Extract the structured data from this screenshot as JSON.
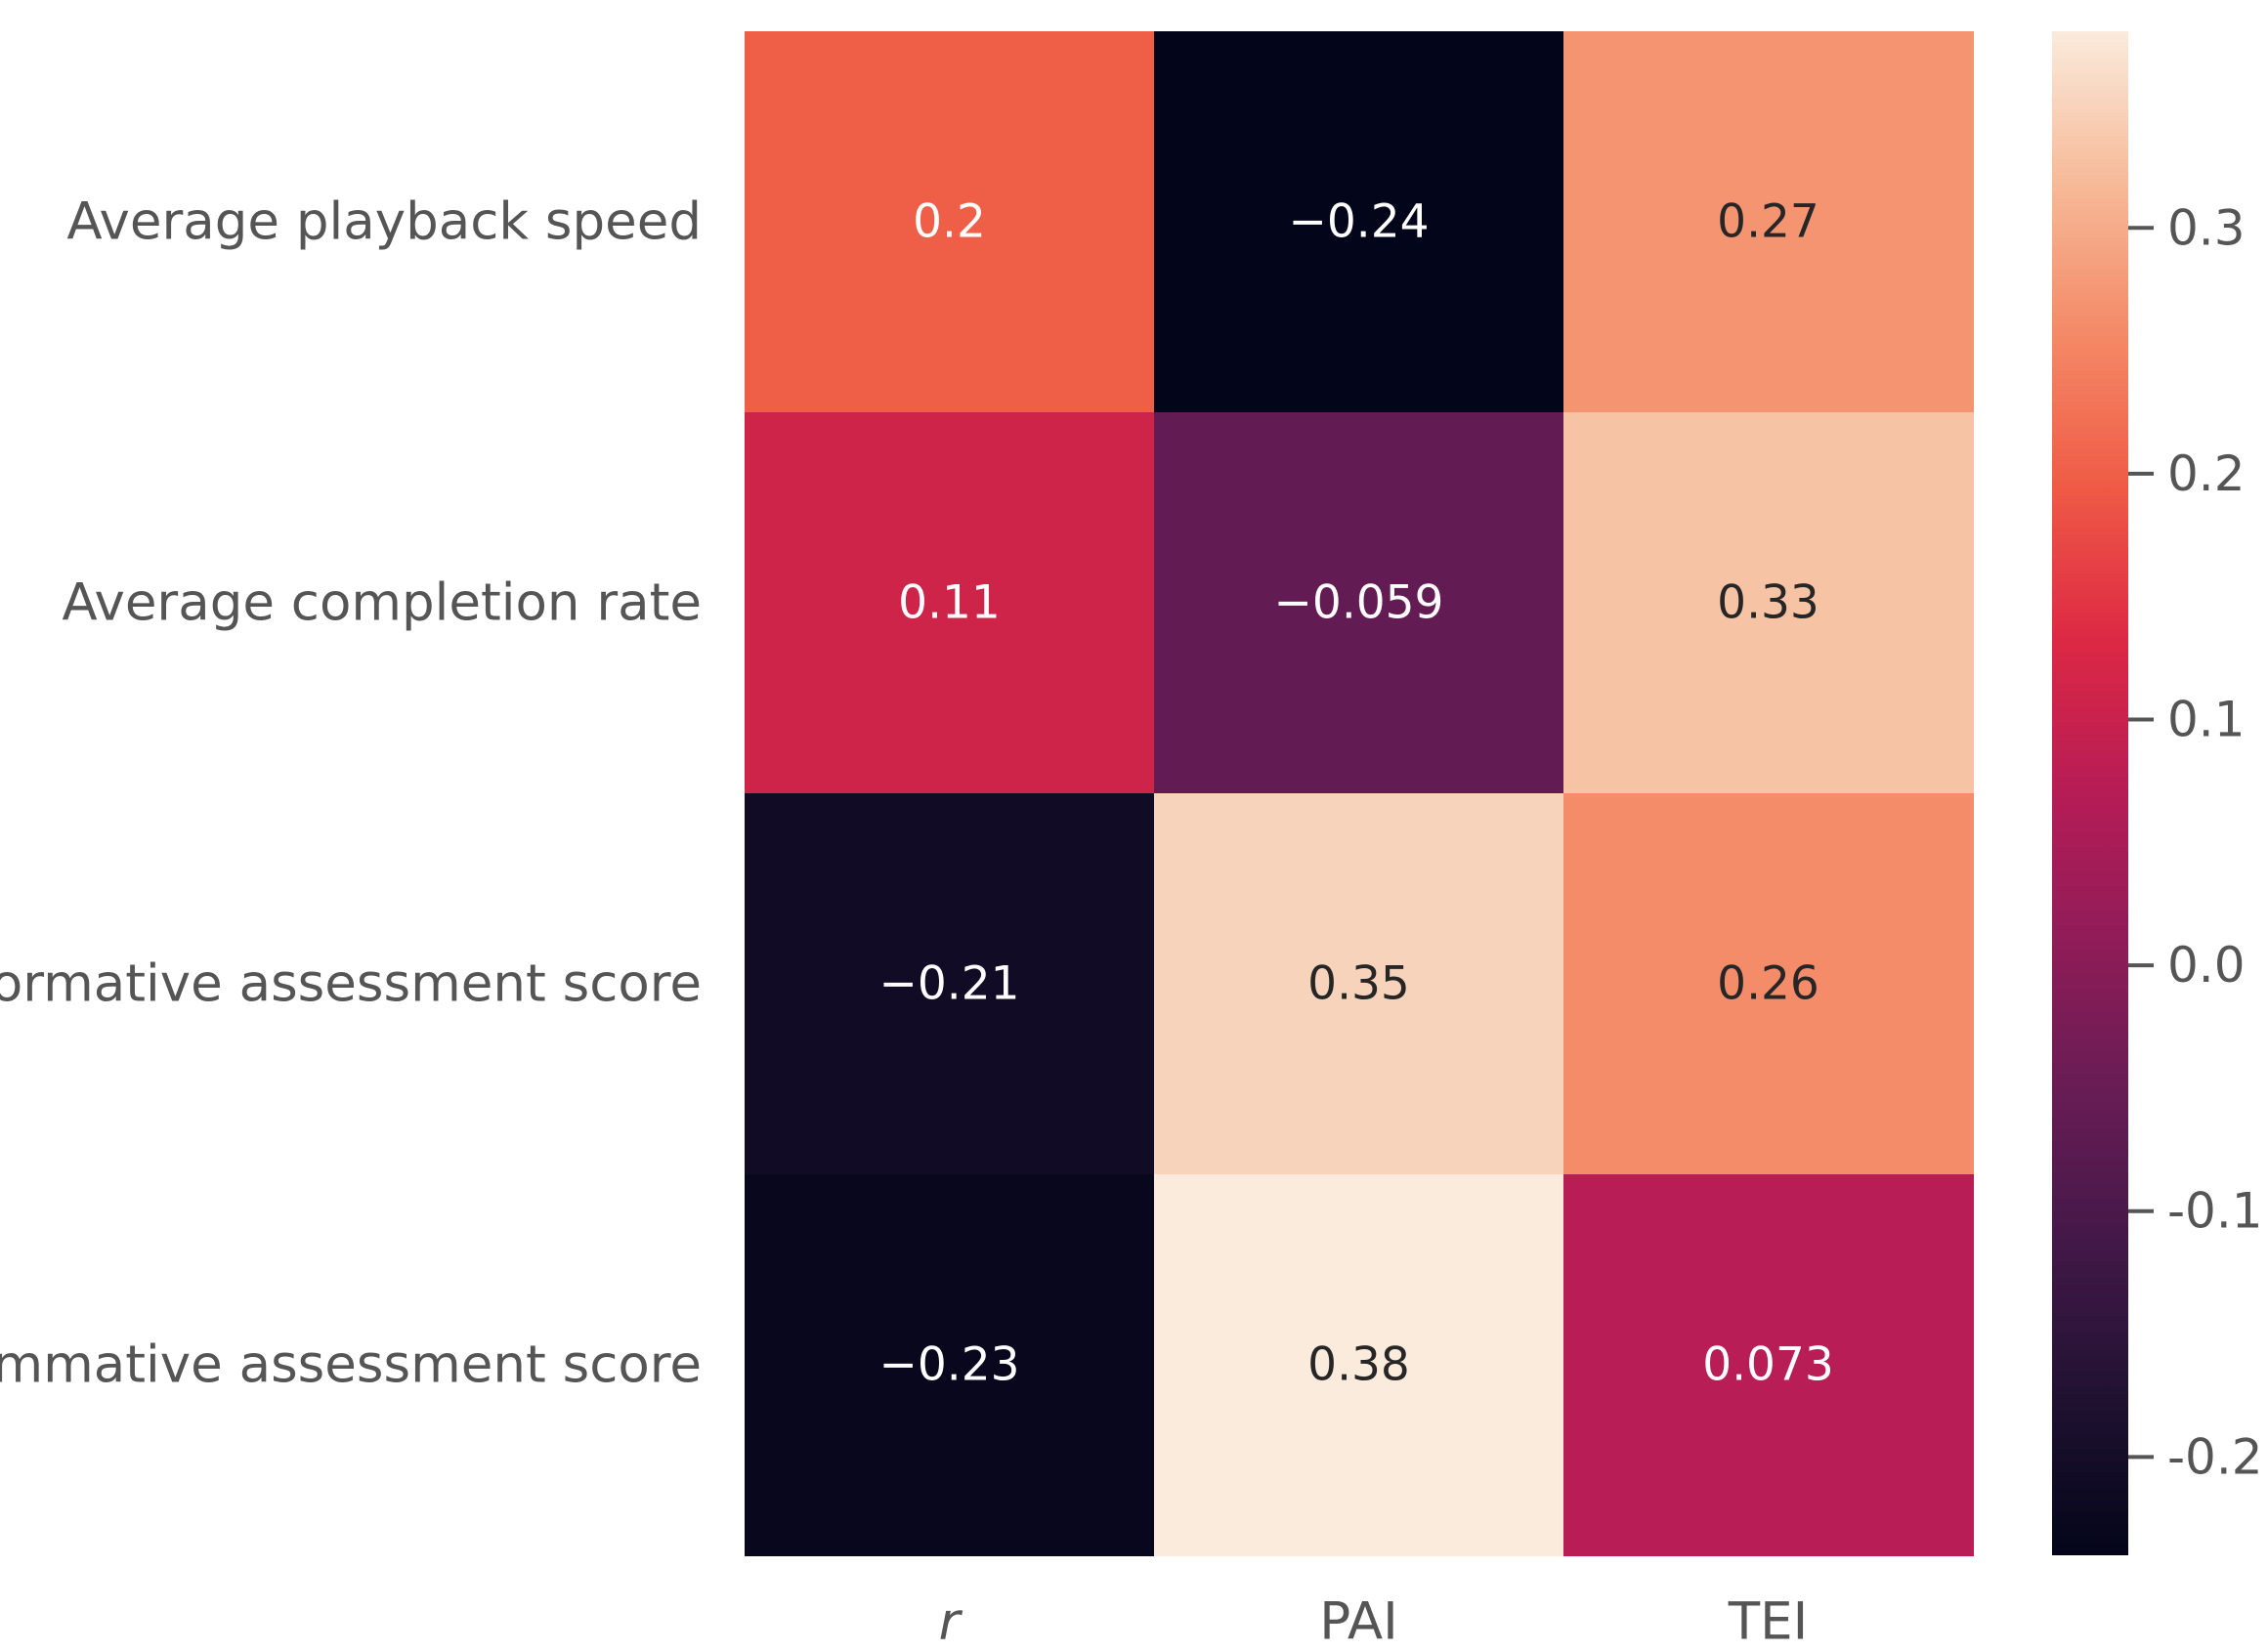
{
  "chart_data": {
    "type": "heatmap",
    "rows": [
      "Average playback speed",
      "Average completion rate",
      "Formative assessment score",
      "Summative assessment score"
    ],
    "columns": [
      "r",
      "PAI",
      "TEI"
    ],
    "values": [
      [
        0.2,
        -0.24,
        0.27
      ],
      [
        0.11,
        -0.059,
        0.33
      ],
      [
        -0.21,
        0.35,
        0.26
      ],
      [
        -0.23,
        0.38,
        0.073
      ]
    ],
    "cell_labels": [
      [
        "0.2",
        "−0.24",
        "0.27"
      ],
      [
        "0.11",
        "−0.059",
        "0.33"
      ],
      [
        "−0.21",
        "0.35",
        "0.26"
      ],
      [
        "−0.23",
        "0.38",
        "0.073"
      ]
    ],
    "colorbar": {
      "range": [
        -0.24,
        0.38
      ],
      "ticks": [
        0.3,
        0.2,
        0.1,
        0.0,
        -0.1,
        -0.2
      ],
      "tick_labels": [
        "0.3",
        "0.2",
        "0.1",
        "0.0",
        "-0.1",
        "-0.2"
      ],
      "colormap": "rocket"
    }
  }
}
